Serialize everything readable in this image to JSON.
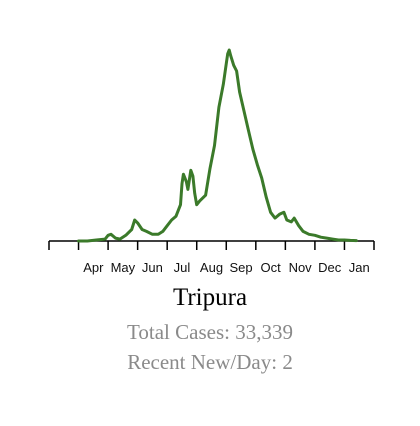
{
  "region": {
    "name": "Tripura",
    "total_label": "Total Cases:",
    "total_value": "33,339",
    "recent_label": "Recent New/Day:",
    "recent_value": "2"
  },
  "colors": {
    "line": "#3b7a2a",
    "axis": "#000000"
  },
  "chart_data": {
    "type": "line",
    "title": "Tripura",
    "xlabel": "",
    "ylabel": "",
    "grid": false,
    "legend": "none",
    "x_unit": "month (fractional, Mar=0 … Feb=11)",
    "xlim": [
      0,
      11
    ],
    "ylim": [
      0,
      100
    ],
    "y_note": "relative daily new cases, peak = 100",
    "tick_labels": [
      "Apr",
      "May",
      "Jun",
      "Jul",
      "Aug",
      "Sep",
      "Oct",
      "Nov",
      "Dec",
      "Jan"
    ],
    "series": [
      {
        "points": [
          [
            1.0,
            0
          ],
          [
            1.3,
            0
          ],
          [
            1.6,
            0.5
          ],
          [
            1.9,
            1
          ],
          [
            2.0,
            3
          ],
          [
            2.1,
            3.5
          ],
          [
            2.25,
            1.5
          ],
          [
            2.4,
            1
          ],
          [
            2.6,
            3
          ],
          [
            2.8,
            6
          ],
          [
            2.9,
            11
          ],
          [
            3.0,
            9.5
          ],
          [
            3.15,
            6
          ],
          [
            3.3,
            5
          ],
          [
            3.5,
            3.5
          ],
          [
            3.7,
            3.5
          ],
          [
            3.85,
            5
          ],
          [
            4.0,
            8
          ],
          [
            4.15,
            11
          ],
          [
            4.3,
            13
          ],
          [
            4.45,
            19
          ],
          [
            4.5,
            30
          ],
          [
            4.55,
            35
          ],
          [
            4.65,
            31
          ],
          [
            4.7,
            27
          ],
          [
            4.8,
            37
          ],
          [
            4.87,
            34
          ],
          [
            4.93,
            25
          ],
          [
            5.0,
            19
          ],
          [
            5.1,
            21
          ],
          [
            5.3,
            24
          ],
          [
            5.45,
            38
          ],
          [
            5.6,
            50
          ],
          [
            5.75,
            70
          ],
          [
            5.9,
            82
          ],
          [
            6.0,
            93
          ],
          [
            6.05,
            98
          ],
          [
            6.1,
            100
          ],
          [
            6.15,
            97
          ],
          [
            6.25,
            92
          ],
          [
            6.35,
            89
          ],
          [
            6.45,
            78
          ],
          [
            6.6,
            68
          ],
          [
            6.75,
            58
          ],
          [
            6.9,
            48
          ],
          [
            7.05,
            40
          ],
          [
            7.2,
            33
          ],
          [
            7.35,
            23
          ],
          [
            7.5,
            15
          ],
          [
            7.65,
            12
          ],
          [
            7.8,
            14
          ],
          [
            7.95,
            15
          ],
          [
            8.05,
            11
          ],
          [
            8.2,
            10
          ],
          [
            8.3,
            12
          ],
          [
            8.45,
            8
          ],
          [
            8.6,
            5
          ],
          [
            8.8,
            3.5
          ],
          [
            9.0,
            3
          ],
          [
            9.2,
            2
          ],
          [
            9.4,
            1.5
          ],
          [
            9.6,
            1
          ],
          [
            9.8,
            0.5
          ],
          [
            10.0,
            0.5
          ],
          [
            10.2,
            0.3
          ],
          [
            10.4,
            0.2
          ]
        ]
      }
    ]
  }
}
